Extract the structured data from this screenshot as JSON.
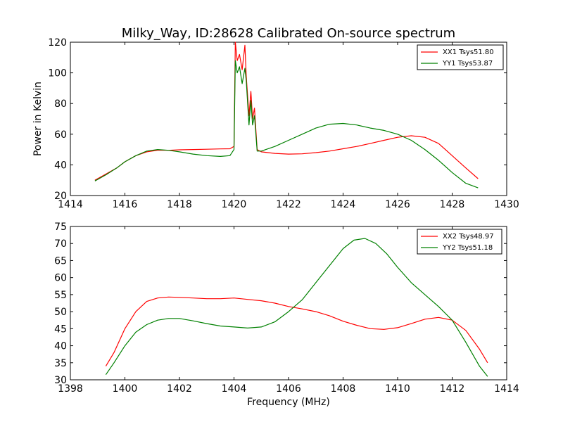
{
  "chart_data": [
    {
      "type": "line",
      "title": "Milky_Way, ID:28628 Calibrated On-source spectrum",
      "xlabel": "",
      "ylabel": "Power in Kelvin",
      "xlim": [
        1414,
        1430
      ],
      "ylim": [
        20,
        120
      ],
      "xticks": [
        1414,
        1416,
        1418,
        1420,
        1422,
        1424,
        1426,
        1428,
        1430
      ],
      "yticks": [
        20,
        40,
        60,
        80,
        100,
        120
      ],
      "legend_position": "top-right",
      "grid": false,
      "series": [
        {
          "name": "XX1 Tsys51.80",
          "color": "#ff0000",
          "x": [
            1414.9,
            1415.3,
            1415.7,
            1416.0,
            1416.4,
            1416.8,
            1417.2,
            1417.6,
            1418.0,
            1418.5,
            1419.0,
            1419.5,
            1419.85,
            1420.0,
            1420.05,
            1420.12,
            1420.2,
            1420.3,
            1420.4,
            1420.45,
            1420.55,
            1420.62,
            1420.68,
            1420.75,
            1420.85,
            1421.0,
            1421.5,
            1422.0,
            1422.5,
            1423.0,
            1423.5,
            1424.0,
            1424.5,
            1425.0,
            1425.5,
            1426.0,
            1426.5,
            1427.0,
            1427.5,
            1428.0,
            1428.5,
            1428.95
          ],
          "y": [
            30,
            34,
            38,
            42,
            46,
            48.5,
            49.5,
            49.5,
            49.8,
            50,
            50.2,
            50.4,
            50.5,
            52,
            120,
            108,
            112,
            102,
            118,
            98,
            72,
            88,
            70,
            77,
            50,
            48.5,
            47.5,
            47,
            47.2,
            48,
            49,
            50.5,
            52,
            54,
            56,
            58,
            59,
            58,
            54,
            46,
            38,
            31
          ]
        },
        {
          "name": "YY1 Tsys53.87",
          "color": "#008000",
          "x": [
            1414.9,
            1415.3,
            1415.7,
            1416.0,
            1416.4,
            1416.8,
            1417.2,
            1417.6,
            1418.0,
            1418.5,
            1419.0,
            1419.5,
            1419.85,
            1420.0,
            1420.05,
            1420.12,
            1420.2,
            1420.3,
            1420.4,
            1420.45,
            1420.55,
            1420.62,
            1420.68,
            1420.75,
            1420.85,
            1421.0,
            1421.5,
            1422.0,
            1422.5,
            1423.0,
            1423.5,
            1424.0,
            1424.5,
            1425.0,
            1425.5,
            1426.0,
            1426.5,
            1427.0,
            1427.5,
            1428.0,
            1428.5,
            1428.95
          ],
          "y": [
            29.5,
            33.5,
            38,
            42,
            46,
            49,
            50,
            49.5,
            48.5,
            47,
            46,
            45.5,
            46,
            50,
            108,
            100,
            104,
            93,
            103,
            95,
            66,
            82,
            66,
            72,
            49,
            49,
            52,
            56,
            60,
            64,
            66.5,
            67,
            66,
            64,
            62.5,
            60,
            56,
            50,
            43,
            35,
            28,
            25
          ]
        }
      ]
    },
    {
      "type": "line",
      "title": "",
      "xlabel": "Frequency (MHz)",
      "ylabel": "",
      "xlim": [
        1398,
        1414
      ],
      "ylim": [
        30,
        75
      ],
      "xticks": [
        1398,
        1400,
        1402,
        1404,
        1406,
        1408,
        1410,
        1412,
        1414
      ],
      "yticks": [
        30,
        35,
        40,
        45,
        50,
        55,
        60,
        65,
        70,
        75
      ],
      "legend_position": "top-right",
      "grid": false,
      "series": [
        {
          "name": "XX2 Tsys48.97",
          "color": "#ff0000",
          "x": [
            1399.3,
            1399.6,
            1400.0,
            1400.4,
            1400.8,
            1401.2,
            1401.6,
            1402.0,
            1402.5,
            1403.0,
            1403.5,
            1404.0,
            1404.5,
            1405.0,
            1405.5,
            1406.0,
            1406.5,
            1407.0,
            1407.5,
            1408.0,
            1408.5,
            1409.0,
            1409.5,
            1410.0,
            1410.5,
            1411.0,
            1411.5,
            1412.0,
            1412.5,
            1413.0,
            1413.3
          ],
          "y": [
            34,
            38,
            45,
            50,
            53,
            54,
            54.3,
            54.2,
            54,
            53.8,
            53.8,
            54,
            53.6,
            53.2,
            52.5,
            51.5,
            50.8,
            50,
            48.8,
            47.2,
            46,
            45,
            44.8,
            45.3,
            46.5,
            47.8,
            48.3,
            47.5,
            44.5,
            39,
            35
          ]
        },
        {
          "name": "YY2 Tsys51.18",
          "color": "#008000",
          "x": [
            1399.3,
            1399.6,
            1400.0,
            1400.4,
            1400.8,
            1401.2,
            1401.6,
            1402.0,
            1402.5,
            1403.0,
            1403.5,
            1404.0,
            1404.5,
            1405.0,
            1405.5,
            1406.0,
            1406.5,
            1407.0,
            1407.5,
            1408.0,
            1408.4,
            1408.8,
            1409.2,
            1409.6,
            1410.0,
            1410.5,
            1411.0,
            1411.5,
            1412.0,
            1412.5,
            1413.0,
            1413.3
          ],
          "y": [
            31.5,
            35,
            40,
            44,
            46.2,
            47.5,
            48,
            48,
            47.3,
            46.5,
            45.8,
            45.5,
            45.2,
            45.5,
            47,
            50,
            53.5,
            58.5,
            63.5,
            68.5,
            71,
            71.5,
            70,
            67,
            63,
            58.5,
            55,
            51.5,
            47.5,
            41,
            34,
            31
          ]
        }
      ]
    }
  ]
}
